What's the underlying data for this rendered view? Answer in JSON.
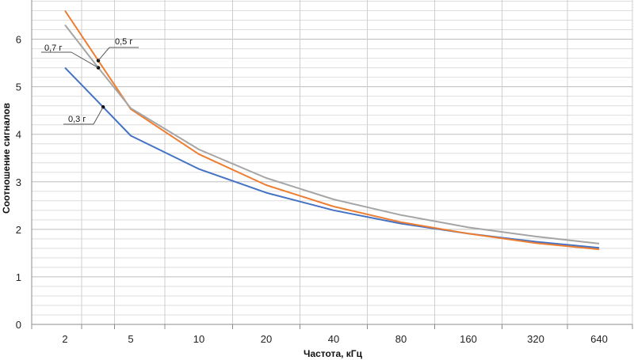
{
  "chart_data": {
    "type": "line",
    "xlabel": "Частота, кГц",
    "ylabel": "Соотношение сигналов",
    "categories": [
      "2",
      "",
      "5",
      "10",
      "20",
      "40",
      "80",
      "160",
      "320",
      "640"
    ],
    "yticks": [
      "0",
      "1",
      "2",
      "3",
      "4",
      "5",
      "6"
    ],
    "ylim": [
      0,
      6.8
    ],
    "grid": true,
    "legend": "none",
    "series": [
      {
        "name": "0,3 г",
        "color": "#4472c4",
        "values": [
          5.4,
          4.68,
          3.97,
          3.27,
          2.77,
          2.4,
          2.12,
          1.91,
          1.74,
          1.61
        ]
      },
      {
        "name": "0,5 г",
        "color": "#ed7d31",
        "values": [
          6.6,
          5.55,
          4.53,
          3.58,
          2.93,
          2.48,
          2.15,
          1.91,
          1.71,
          1.58
        ]
      },
      {
        "name": "0,7 г",
        "color": "#a5a5a5",
        "values": [
          6.3,
          5.4,
          4.55,
          3.68,
          3.08,
          2.63,
          2.3,
          2.04,
          1.85,
          1.7
        ]
      }
    ],
    "annotations": [
      {
        "text": "0,7 г",
        "series": 2,
        "x_index": 1.0
      },
      {
        "text": "0,5 г",
        "series": 1,
        "x_index": 1.0
      },
      {
        "text": "0,3 г",
        "series": 0,
        "x_index": 1.15
      }
    ]
  }
}
